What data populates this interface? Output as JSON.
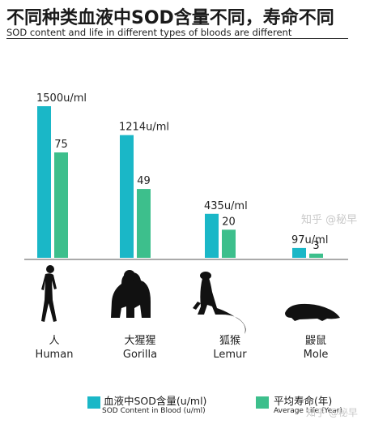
{
  "chart_data": {
    "type": "bar",
    "title": "不同种类血液中SOD含量不同，寿命不同",
    "subtitle": "SOD content and life in different types of bloods are different",
    "categories": [
      {
        "cn": "人",
        "en": "Human"
      },
      {
        "cn": "大猩猩",
        "en": "Gorilla"
      },
      {
        "cn": "狐猴",
        "en": "Lemur"
      },
      {
        "cn": "鼹鼠",
        "en": "Mole"
      }
    ],
    "series": [
      {
        "name": "血液中SOD含量(u/ml)",
        "name_en": "SOD Content in Blood (u/ml)",
        "color": "#1ab7c7",
        "values": [
          1500,
          1214,
          435,
          97
        ],
        "labels": [
          "1500u/ml",
          "1214u/ml",
          "435u/ml",
          "97u/ml"
        ]
      },
      {
        "name": "平均寿命(年)",
        "name_en": "Average Life (Year)",
        "color": "#3dbf8c",
        "values": [
          75,
          49,
          20,
          3
        ],
        "labels": [
          "75",
          "49",
          "20",
          "3"
        ]
      }
    ],
    "legend": "bottom",
    "grid": false
  },
  "watermark": "知乎 @秘早",
  "icons": [
    "human-silhouette-icon",
    "gorilla-silhouette-icon",
    "lemur-silhouette-icon",
    "mole-silhouette-icon"
  ]
}
